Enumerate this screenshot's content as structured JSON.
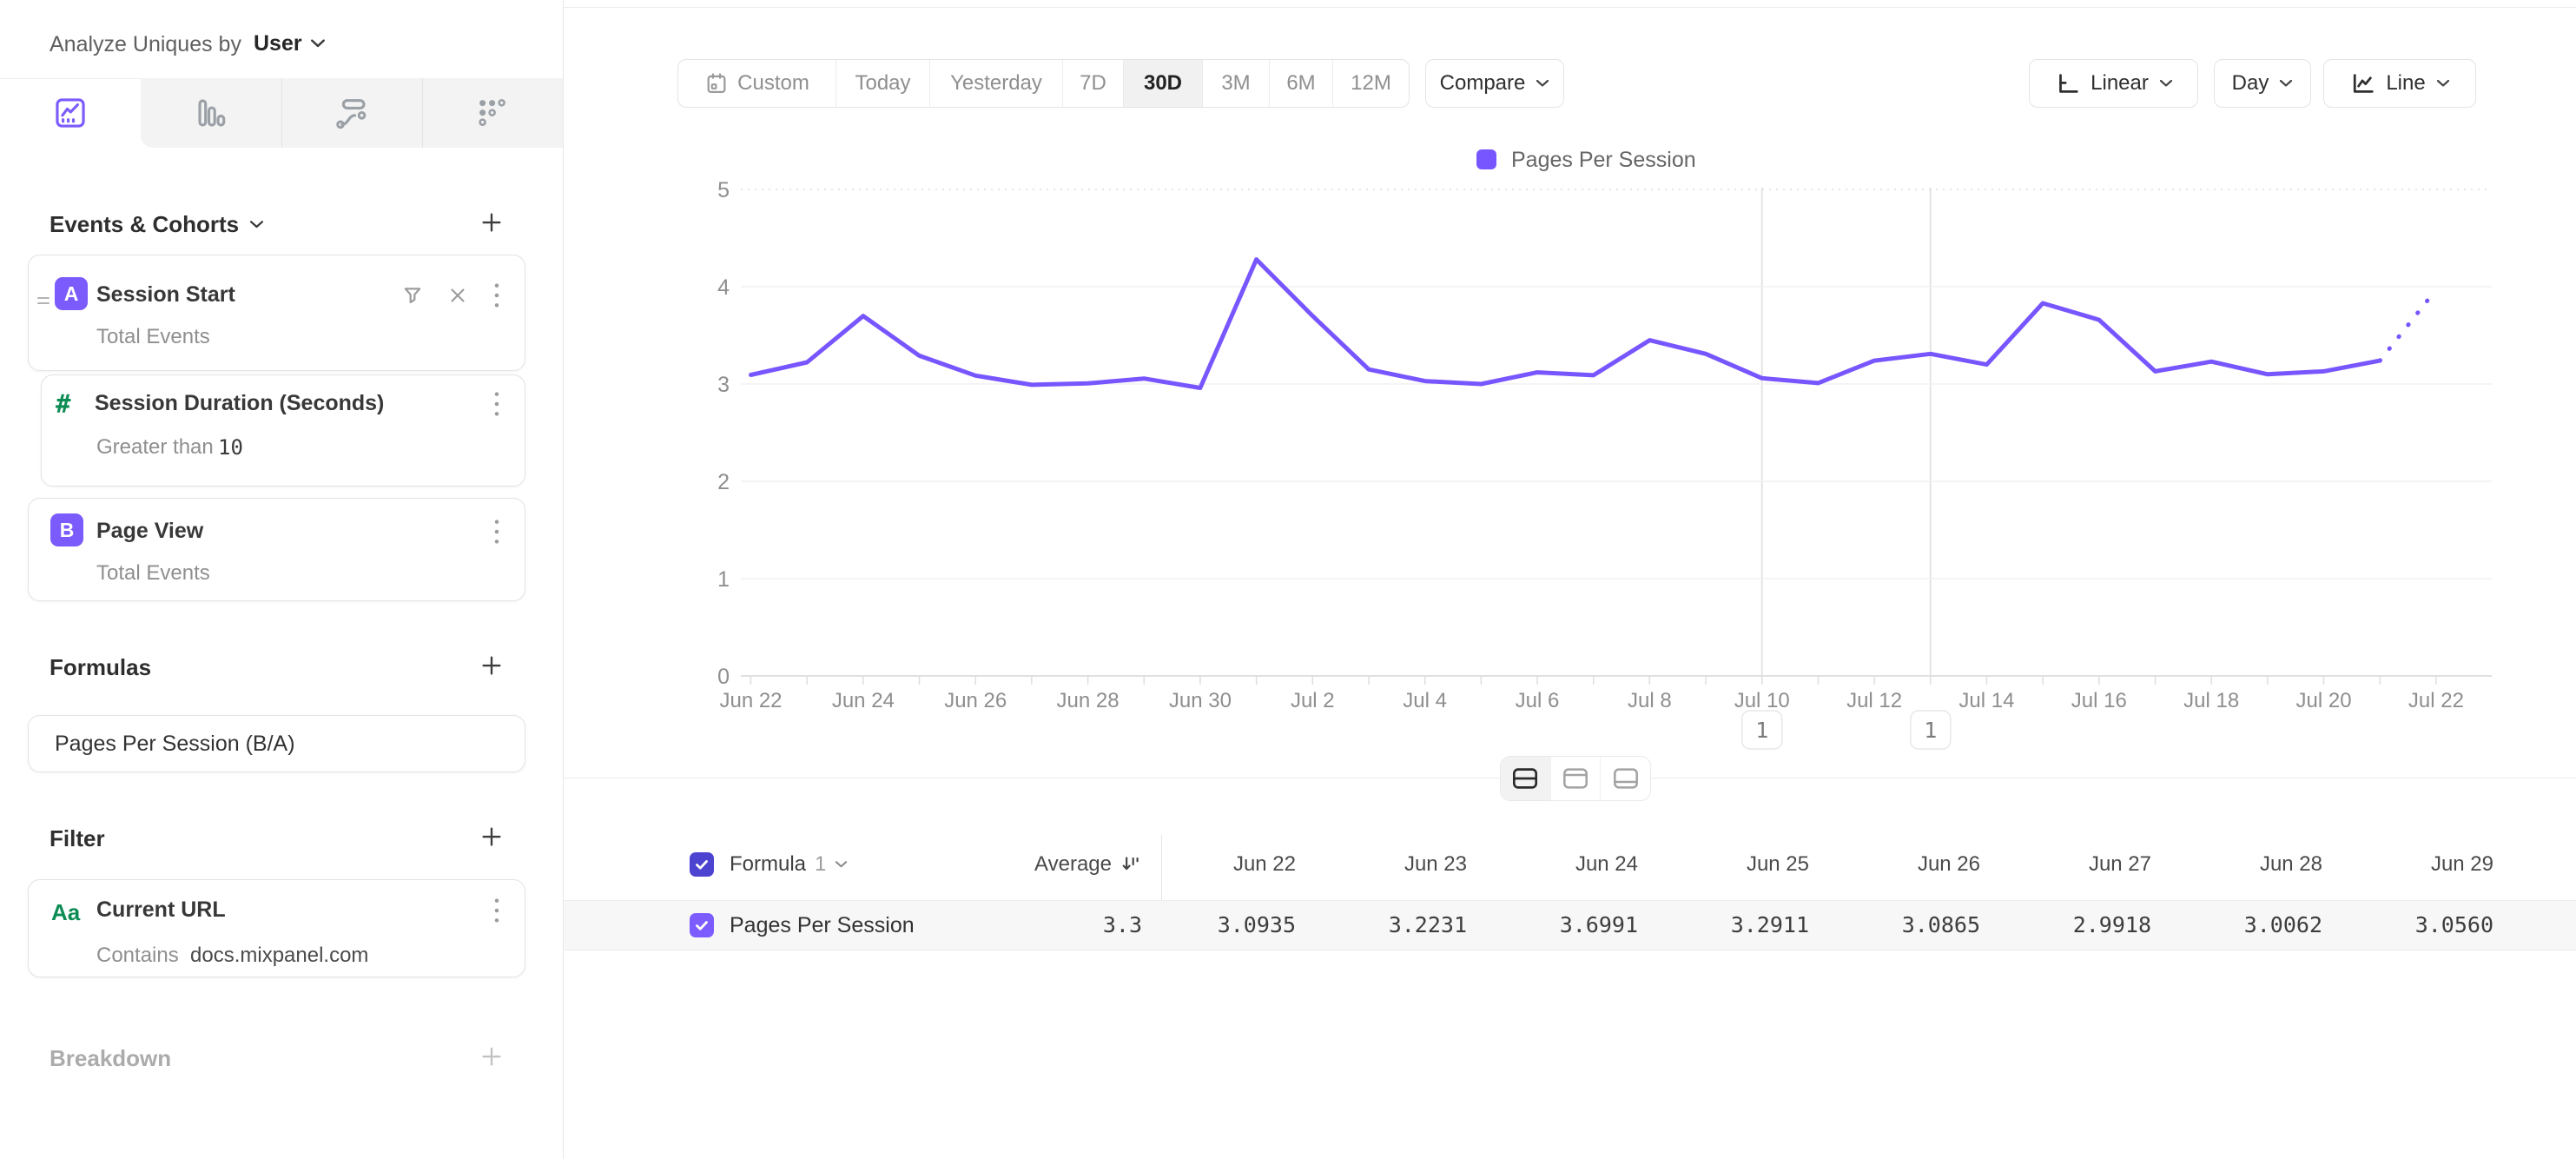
{
  "colors": {
    "accent": "#7856ff",
    "badge_purple": "#7b5bfc",
    "green": "#0d8c54",
    "header_checkbox": "#4c43d0",
    "row_checkbox": "#7c5cff",
    "gridline": "#f0f0f0",
    "axis_line": "#e0e0e0",
    "annotation_line": "#e4e4e4"
  },
  "sidebar": {
    "analyze_label": "Analyze Uniques by",
    "analyze_value": "User",
    "tabs": [
      "insights",
      "bar-chart",
      "flows",
      "retention"
    ],
    "selected_tab": "insights",
    "events_header": "Events & Cohorts",
    "session_start": {
      "badge": "A",
      "title": "Session Start",
      "subtitle": "Total Events"
    },
    "session_duration": {
      "icon": "#",
      "title": "Session Duration (Seconds)",
      "operator": "Greater than",
      "value": "10"
    },
    "page_view": {
      "badge": "B",
      "title": "Page View",
      "subtitle": "Total Events"
    },
    "formulas_header": "Formulas",
    "formula_value": "Pages Per Session (B/A)",
    "filter_header": "Filter",
    "filter": {
      "icon": "Aa",
      "title": "Current URL",
      "operator": "Contains",
      "value": "docs.mixpanel.com"
    },
    "breakdown_header": "Breakdown"
  },
  "toolbar": {
    "ranges": [
      "Custom",
      "Today",
      "Yesterday",
      "7D",
      "30D",
      "3M",
      "6M",
      "12M"
    ],
    "selected_range": "30D",
    "compare_label": "Compare",
    "scale_label": "Linear",
    "granularity_label": "Day",
    "chart_type_label": "Line"
  },
  "chart_data": {
    "type": "line",
    "title": "",
    "legend_position": "top",
    "grid": "horizontal",
    "ylim": [
      0,
      5
    ],
    "yticks": [
      0,
      1,
      2,
      3,
      4,
      5
    ],
    "x": [
      "Jun 22",
      "Jun 23",
      "Jun 24",
      "Jun 25",
      "Jun 26",
      "Jun 27",
      "Jun 28",
      "Jun 29",
      "Jun 30",
      "Jul 1",
      "Jul 2",
      "Jul 3",
      "Jul 4",
      "Jul 5",
      "Jul 6",
      "Jul 7",
      "Jul 8",
      "Jul 9",
      "Jul 10",
      "Jul 11",
      "Jul 12",
      "Jul 13",
      "Jul 14",
      "Jul 15",
      "Jul 16",
      "Jul 17",
      "Jul 18",
      "Jul 19",
      "Jul 20",
      "Jul 21",
      "Jul 22"
    ],
    "x_tick_step": 2,
    "series": [
      {
        "name": "Pages Per Session",
        "values": [
          3.0935,
          3.2231,
          3.6991,
          3.2911,
          3.0865,
          2.9918,
          3.0062,
          3.056,
          2.96,
          4.28,
          3.7,
          3.15,
          3.03,
          3.0,
          3.12,
          3.09,
          3.45,
          3.31,
          3.06,
          3.01,
          3.24,
          3.31,
          3.2,
          3.83,
          3.66,
          3.13,
          3.23,
          3.1,
          3.13,
          3.24,
          3.97
        ],
        "last_segment_style": "dotted"
      }
    ],
    "annotations": [
      {
        "x": "Jul 10",
        "x_index": 18,
        "label": "1"
      },
      {
        "x": "Jul 13",
        "x_index": 21,
        "label": "1"
      }
    ]
  },
  "view_toggle": {
    "options": [
      "split-view",
      "chart-only",
      "table-only"
    ],
    "selected": "split-view"
  },
  "table": {
    "group_label": "Formula",
    "group_index": "1",
    "average_header": "Average",
    "sort": "descending",
    "date_columns": [
      "Jun 22",
      "Jun 23",
      "Jun 24",
      "Jun 25",
      "Jun 26",
      "Jun 27",
      "Jun 28",
      "Jun 29"
    ],
    "rows": [
      {
        "name": "Pages Per Session",
        "checked": true,
        "average": "3.3",
        "values": [
          "3.0935",
          "3.2231",
          "3.6991",
          "3.2911",
          "3.0865",
          "2.9918",
          "3.0062",
          "3.0560"
        ]
      }
    ]
  }
}
